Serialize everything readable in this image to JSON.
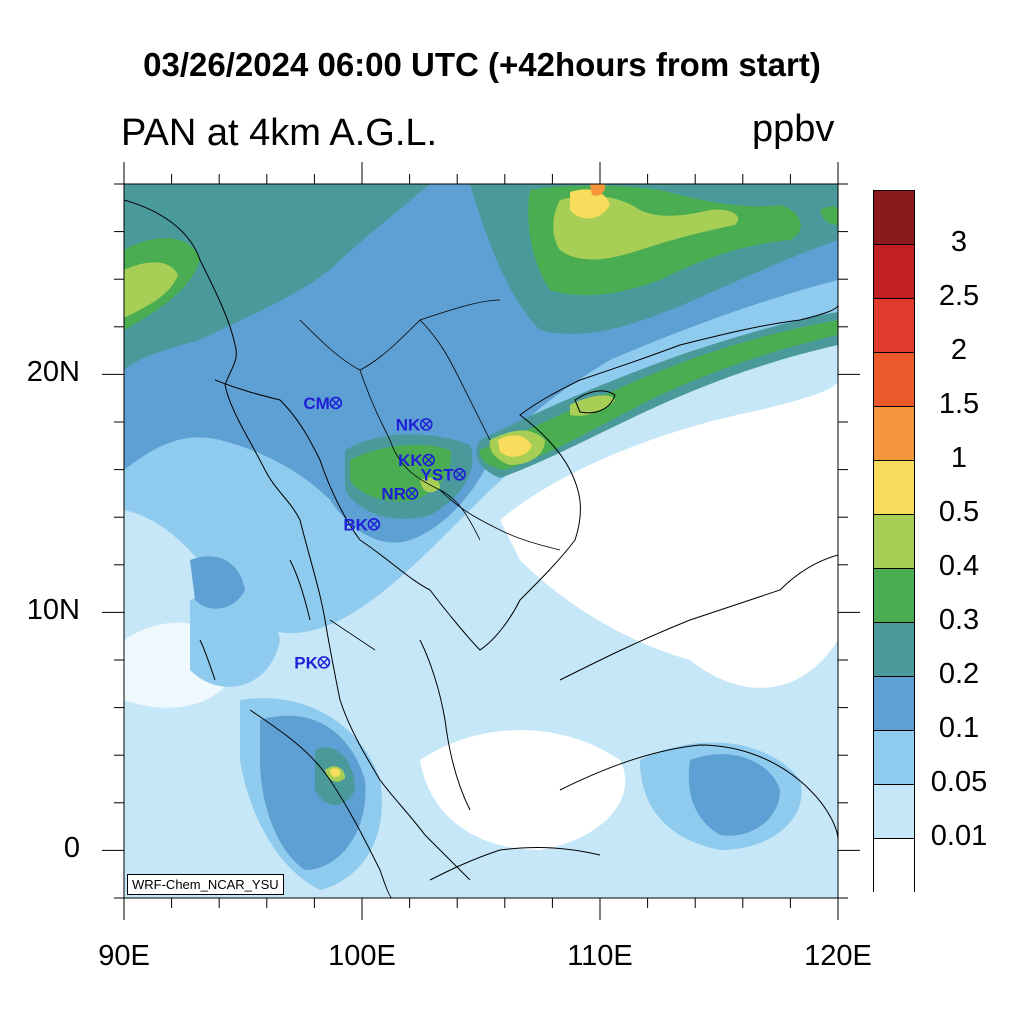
{
  "title": "03/26/2024 06:00 UTC (+42hours from start)",
  "subtitle": "PAN at 4km A.G.L.",
  "units": "ppbv",
  "credit": "WRF-Chem_NCAR_YSU",
  "map": {
    "lon_range": [
      90,
      120
    ],
    "lat_range": [
      -2,
      28
    ],
    "x_ticks": [
      {
        "value": 90,
        "label": "90E"
      },
      {
        "value": 100,
        "label": "100E"
      },
      {
        "value": 110,
        "label": "110E"
      },
      {
        "value": 120,
        "label": "120E"
      }
    ],
    "y_ticks": [
      {
        "value": 0,
        "label": "0"
      },
      {
        "value": 10,
        "label": "10N"
      },
      {
        "value": 20,
        "label": "20N"
      }
    ]
  },
  "legend": {
    "labels": [
      "3",
      "2.5",
      "2",
      "1.5",
      "1",
      "0.5",
      "0.4",
      "0.3",
      "0.2",
      "0.1",
      "0.05",
      "0.01"
    ],
    "colors": [
      "#8b1a1a",
      "#c21f24",
      "#e03a2d",
      "#ec5a2c",
      "#f5963d",
      "#f7dd5b",
      "#a7cf55",
      "#4aad52",
      "#4a9a9c",
      "#5fa0d4",
      "#8ecbee",
      "#c6e7f8",
      "#ffffff"
    ]
  },
  "stations": [
    {
      "name": "CM",
      "lon": 98.9,
      "lat": 18.8
    },
    {
      "name": "NK",
      "lon": 102.7,
      "lat": 17.9
    },
    {
      "name": "KK",
      "lon": 102.8,
      "lat": 16.4
    },
    {
      "name": "YST",
      "lon": 104.1,
      "lat": 15.8
    },
    {
      "name": "NR",
      "lon": 102.1,
      "lat": 15.0
    },
    {
      "name": "BK",
      "lon": 100.5,
      "lat": 13.7
    },
    {
      "name": "PK",
      "lon": 98.4,
      "lat": 7.9
    }
  ]
}
